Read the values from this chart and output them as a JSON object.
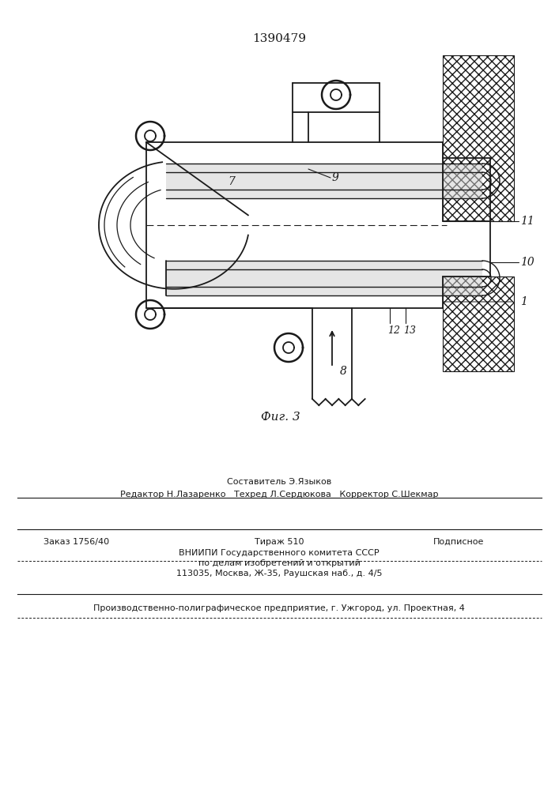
{
  "patent_number": "1390479",
  "fig_label": "Фиг. 3",
  "bg_color": "#ffffff",
  "line_color": "#1a1a1a",
  "hatch_color": "#333333",
  "footer": {
    "sestavitel": "Составитель Э.Языков",
    "redaktor": "Редактор Н.Лазаренко",
    "tehred": "Техред Л.Сердюкова",
    "korrektor": "Корректор С.Шекмар",
    "zakaz": "Заказ 1756/40",
    "tirazh": "Тираж 510",
    "podpisnoe": "Подписное",
    "vniip1": "ВНИИПИ Государственного комитета СССР",
    "vniip2": "по делам изобретений и открытий",
    "address": "113035, Москва, Ж-35, Раушская наб., д. 4/5",
    "predpriyatie": "Производственно-полиграфическое предприятие, г. Ужгород, ул. Проектная, 4"
  }
}
